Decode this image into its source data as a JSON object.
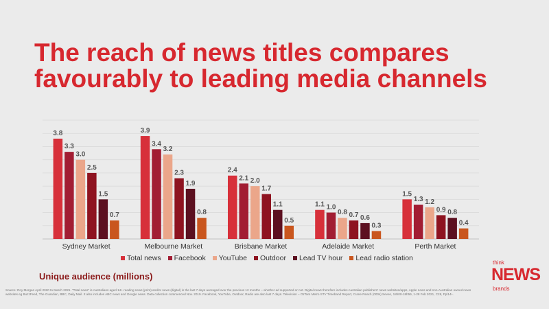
{
  "title_line1": "The reach of news titles compares",
  "title_line2": "favourably to leading media channels",
  "unit_label": "Unique audience (millions)",
  "source": "Source: Roy Morgan April 2020 to March 2021. \"Total news\" is Australians aged 14+ reading news (print) and/or news (digital) in the last 7 days averaged over the previous 12 months – whether ad supported or not. Digital news therefore includes Australian publishers' news websites/apps, Apple news and non-Australian owned news websites eg BuzzFeed, The Guardian, BBC, Daily Mail. It also includes ABC news and Google news. Data collection commenced Nov. 2019. Facebook, YouTube, Outdoor, Radio are also last 7 days. Television – OzTam Metro STV Timeband Report, Cume Reach (000s) Seven, 18h00-18h59, 1-28 Feb 2021, C28, Ppl14+.",
  "logo": {
    "think": "think",
    "news": "NEWS",
    "brands": "brands"
  },
  "chart_data": {
    "type": "bar",
    "categories": [
      "Sydney Market",
      "Melbourne Market",
      "Brisbane Market",
      "Adelaide Market",
      "Perth Market"
    ],
    "series": [
      {
        "name": "Total news",
        "color": "#d7303a",
        "values": [
          3.8,
          3.9,
          2.4,
          1.1,
          1.5
        ]
      },
      {
        "name": "Facebook",
        "color": "#a21d33",
        "values": [
          3.3,
          3.4,
          2.1,
          1.0,
          1.3
        ]
      },
      {
        "name": "YouTube",
        "color": "#eba68a",
        "values": [
          3.0,
          3.2,
          2.0,
          0.8,
          1.2
        ]
      },
      {
        "name": "Outdoor",
        "color": "#8e1320",
        "values": [
          2.5,
          2.3,
          1.7,
          0.7,
          0.9
        ]
      },
      {
        "name": "Lead TV hour",
        "color": "#5c1020",
        "values": [
          1.5,
          1.9,
          1.1,
          0.6,
          0.8
        ]
      },
      {
        "name": "Lead radio station",
        "color": "#c9561e",
        "values": [
          0.7,
          0.8,
          0.5,
          0.3,
          0.4
        ]
      }
    ],
    "ylim": [
      0,
      4.5
    ],
    "grid": true,
    "legend": "bottom"
  }
}
